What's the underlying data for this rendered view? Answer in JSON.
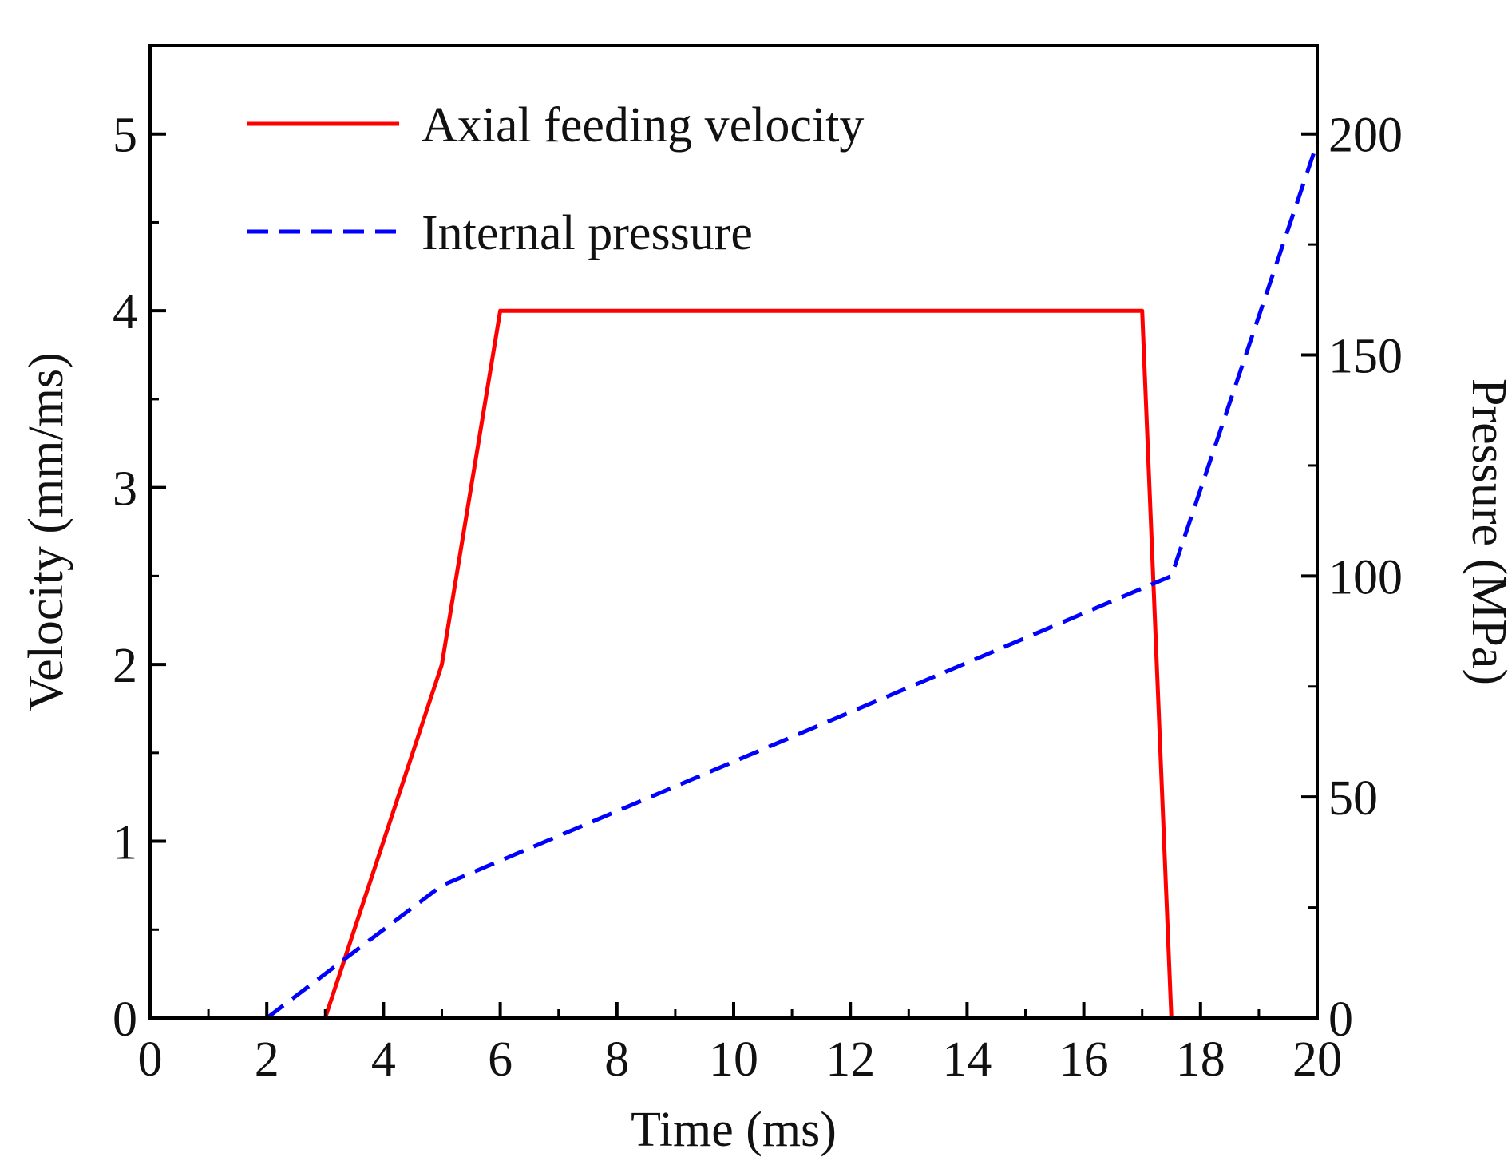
{
  "chart_data": {
    "type": "line",
    "x": {
      "label": "Time (ms)",
      "range": [
        0,
        20
      ],
      "ticks": [
        0,
        2,
        4,
        6,
        8,
        10,
        12,
        14,
        16,
        18,
        20
      ]
    },
    "y_left": {
      "label": "Velocity (mm/ms)",
      "range": [
        0,
        5.5
      ],
      "ticks": [
        0,
        1,
        2,
        3,
        4,
        5
      ]
    },
    "y_right": {
      "label": "Pressure (MPa)",
      "range": [
        0,
        220
      ],
      "ticks": [
        0,
        50,
        100,
        150,
        200
      ]
    },
    "grid": false,
    "legend_position": "top-left",
    "series": [
      {
        "name": "Axial feeding velocity",
        "axis": "left",
        "color": "#ff0000",
        "style": "solid",
        "points": [
          [
            3,
            0
          ],
          [
            5,
            2
          ],
          [
            6,
            4
          ],
          [
            17,
            4
          ],
          [
            17.5,
            0
          ]
        ]
      },
      {
        "name": "Internal pressure",
        "axis": "right",
        "color": "#0000ff",
        "style": "dashed",
        "points": [
          [
            2,
            0
          ],
          [
            5,
            30
          ],
          [
            17.5,
            100
          ],
          [
            20,
            198
          ]
        ]
      }
    ]
  }
}
